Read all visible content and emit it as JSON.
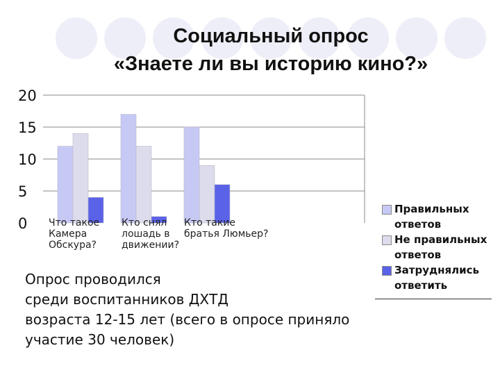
{
  "title": {
    "line1": "Социальный опрос",
    "line2": "«Знаете ли вы историю кино?»"
  },
  "chart_data": {
    "type": "bar",
    "categories": [
      [
        "Что такое",
        "Камера",
        "Обскура?"
      ],
      [
        "Кто снял",
        "лошадь в",
        "движении?"
      ],
      [
        "Кто такие",
        "братья Люмьер?"
      ]
    ],
    "series": [
      {
        "name": "Правильных ответов",
        "color": "#c7c9f5",
        "values": [
          12,
          17,
          15
        ]
      },
      {
        "name": "Не правильных ответов",
        "color": "#dcdcec",
        "values": [
          14,
          12,
          9
        ]
      },
      {
        "name": "Затруднялись ответить",
        "color": "#5a62e8",
        "values": [
          4,
          1,
          6
        ]
      }
    ],
    "ylim": [
      0,
      20
    ],
    "yticks": [
      0,
      5,
      10,
      15,
      20
    ],
    "grid": true,
    "legend": "right"
  },
  "legend_lines": [
    [
      "Правильных",
      "ответов"
    ],
    [
      "Не правильных",
      "ответов"
    ],
    [
      "Затруднялись",
      "ответить"
    ]
  ],
  "note_lines": [
    "Опрос проводился",
    "среди воспитанников ДХТД",
    "возраста 12-15 лет (всего в опросе приняло",
    "участие 30 человек)"
  ]
}
